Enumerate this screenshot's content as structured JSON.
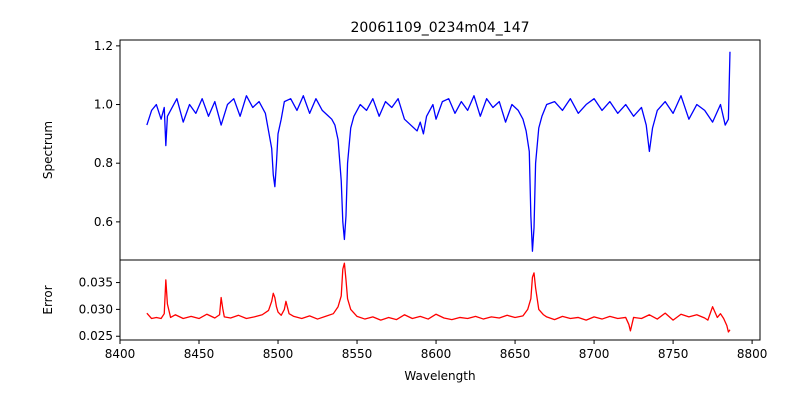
{
  "chart_data": {
    "type": "line",
    "title": "20061109_0234m04_147",
    "xlabel": "Wavelength",
    "xlim": [
      8400,
      8805
    ],
    "xticks": [
      8400,
      8450,
      8500,
      8550,
      8600,
      8650,
      8700,
      8750,
      8800
    ],
    "x_start": 8417,
    "x_end": 8786,
    "panels": [
      {
        "id": "spectrum",
        "ylabel": "Spectrum",
        "ylim": [
          0.47,
          1.22
        ],
        "yticks": [
          0.6,
          0.8,
          1.0,
          1.2
        ],
        "color": "#0000ff",
        "series": [
          {
            "x": [
              8417,
              8420,
              8423,
              8426,
              8428,
              8429,
              8430,
              8433,
              8436,
              8440,
              8444,
              8448,
              8452,
              8456,
              8460,
              8464,
              8468,
              8472,
              8476,
              8480,
              8484,
              8488,
              8492,
              8494,
              8496,
              8497,
              8498,
              8499,
              8500,
              8502,
              8504,
              8508,
              8512,
              8516,
              8520,
              8524,
              8528,
              8532,
              8534,
              8536,
              8538,
              8540,
              8541,
              8542,
              8543,
              8544,
              8546,
              8548,
              8552,
              8556,
              8560,
              8564,
              8568,
              8572,
              8576,
              8580,
              8584,
              8588,
              8590,
              8592,
              8594,
              8596,
              8598,
              8600,
              8602,
              8604,
              8608,
              8612,
              8616,
              8620,
              8624,
              8628,
              8632,
              8636,
              8640,
              8644,
              8648,
              8652,
              8655,
              8657,
              8659,
              8660,
              8661,
              8662,
              8663,
              8665,
              8667,
              8670,
              8675,
              8680,
              8685,
              8690,
              8695,
              8700,
              8705,
              8710,
              8715,
              8720,
              8725,
              8730,
              8733,
              8735,
              8737,
              8740,
              8745,
              8750,
              8755,
              8760,
              8765,
              8770,
              8775,
              8780,
              8783,
              8785,
              8786
            ],
            "y": [
              0.93,
              0.98,
              1.0,
              0.95,
              0.99,
              0.86,
              0.96,
              0.99,
              1.02,
              0.94,
              1.0,
              0.97,
              1.02,
              0.96,
              1.01,
              0.93,
              1.0,
              1.02,
              0.96,
              1.03,
              0.99,
              1.01,
              0.97,
              0.91,
              0.85,
              0.76,
              0.72,
              0.8,
              0.9,
              0.95,
              1.01,
              1.02,
              0.98,
              1.03,
              0.97,
              1.02,
              0.98,
              0.96,
              0.95,
              0.93,
              0.88,
              0.74,
              0.6,
              0.54,
              0.62,
              0.8,
              0.92,
              0.96,
              1.0,
              0.98,
              1.02,
              0.96,
              1.01,
              0.99,
              1.02,
              0.95,
              0.93,
              0.91,
              0.94,
              0.9,
              0.96,
              0.98,
              1.0,
              0.95,
              0.98,
              1.01,
              1.02,
              0.97,
              1.01,
              0.98,
              1.03,
              0.96,
              1.02,
              0.99,
              1.01,
              0.94,
              1.0,
              0.98,
              0.95,
              0.91,
              0.84,
              0.62,
              0.5,
              0.58,
              0.8,
              0.92,
              0.96,
              1.0,
              1.01,
              0.98,
              1.02,
              0.97,
              1.0,
              1.02,
              0.98,
              1.01,
              0.97,
              1.0,
              0.96,
              0.99,
              0.93,
              0.84,
              0.92,
              0.98,
              1.01,
              0.97,
              1.03,
              0.95,
              1.0,
              0.98,
              0.94,
              1.0,
              0.93,
              0.95,
              1.18
            ]
          }
        ]
      },
      {
        "id": "error",
        "ylabel": "Error",
        "ylim": [
          0.0243,
          0.0392
        ],
        "yticks": [
          0.025,
          0.03,
          0.035
        ],
        "color": "#ff0000",
        "series": [
          {
            "x": [
              8417,
              8420,
              8423,
              8426,
              8428,
              8429,
              8430,
              8432,
              8435,
              8440,
              8445,
              8450,
              8455,
              8460,
              8463,
              8464,
              8465,
              8466,
              8470,
              8475,
              8480,
              8485,
              8490,
              8494,
              8496,
              8497,
              8498,
              8499,
              8500,
              8502,
              8504,
              8505,
              8507,
              8510,
              8515,
              8520,
              8525,
              8530,
              8535,
              8538,
              8540,
              8541,
              8542,
              8543,
              8544,
              8546,
              8550,
              8555,
              8560,
              8565,
              8570,
              8575,
              8580,
              8585,
              8590,
              8595,
              8600,
              8605,
              8610,
              8615,
              8620,
              8625,
              8630,
              8635,
              8640,
              8645,
              8650,
              8655,
              8658,
              8660,
              8661,
              8662,
              8663,
              8665,
              8668,
              8670,
              8675,
              8680,
              8685,
              8690,
              8695,
              8700,
              8705,
              8710,
              8715,
              8720,
              8722,
              8723,
              8725,
              8730,
              8735,
              8740,
              8745,
              8750,
              8755,
              8760,
              8765,
              8770,
              8772,
              8775,
              8778,
              8780,
              8782,
              8784,
              8785,
              8786
            ],
            "y": [
              0.0293,
              0.0283,
              0.0285,
              0.0283,
              0.0292,
              0.0355,
              0.031,
              0.0285,
              0.029,
              0.0283,
              0.0287,
              0.0283,
              0.0291,
              0.0284,
              0.029,
              0.0322,
              0.0302,
              0.0286,
              0.0284,
              0.0289,
              0.0283,
              0.0286,
              0.029,
              0.0298,
              0.0315,
              0.033,
              0.0322,
              0.0305,
              0.0295,
              0.0289,
              0.03,
              0.0315,
              0.0292,
              0.0287,
              0.0283,
              0.0288,
              0.0282,
              0.0287,
              0.0292,
              0.0305,
              0.0325,
              0.0375,
              0.0386,
              0.0355,
              0.032,
              0.03,
              0.0287,
              0.0282,
              0.0286,
              0.028,
              0.0285,
              0.0281,
              0.029,
              0.0283,
              0.0287,
              0.0282,
              0.0291,
              0.0284,
              0.0281,
              0.0285,
              0.0283,
              0.0287,
              0.0282,
              0.0286,
              0.0284,
              0.0289,
              0.0285,
              0.0288,
              0.03,
              0.032,
              0.036,
              0.0368,
              0.034,
              0.03,
              0.029,
              0.0286,
              0.0281,
              0.0287,
              0.0283,
              0.0285,
              0.028,
              0.0286,
              0.0282,
              0.0287,
              0.0283,
              0.0285,
              0.0272,
              0.026,
              0.0285,
              0.0283,
              0.029,
              0.0282,
              0.0293,
              0.028,
              0.0291,
              0.0286,
              0.029,
              0.0284,
              0.028,
              0.0305,
              0.0285,
              0.0292,
              0.0283,
              0.027,
              0.0258,
              0.0262
            ]
          }
        ]
      }
    ]
  }
}
